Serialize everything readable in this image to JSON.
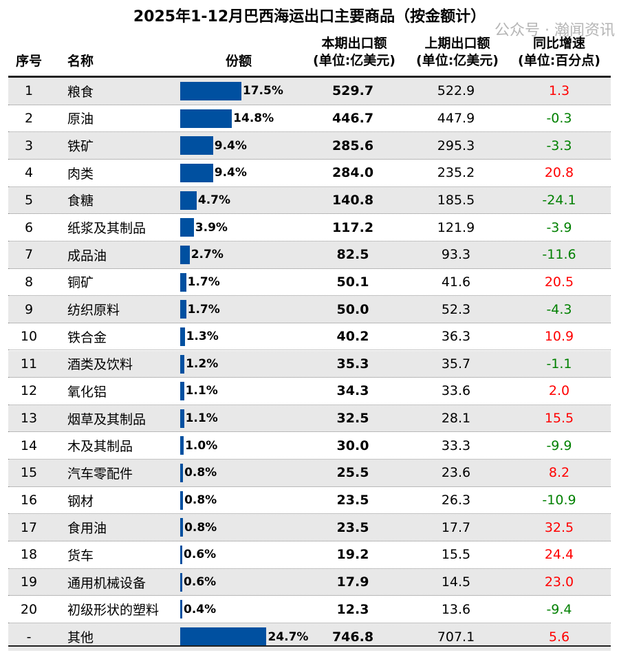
{
  "title": "2025年1-12月巴西海运出口主要商品（按金额计）",
  "headers": {
    "idx": "序号",
    "name": "名称",
    "share": "份额",
    "cur": [
      "本期出口额",
      "(单位:亿美元)"
    ],
    "prev": [
      "上期出口额",
      "(单位:亿美元)"
    ],
    "yoy": [
      "同比增速",
      "(单位:百分点)"
    ]
  },
  "colors": {
    "bar": "#0050a0",
    "positive": "#ff0000",
    "negative": "#008000",
    "stripe": "#e8e8e8"
  },
  "watermark": "公众号 · 瀚闻资讯",
  "chart_data": {
    "type": "table",
    "title": "2025年1-12月巴西海运出口主要商品（按金额计）",
    "rows": [
      {
        "idx": "1",
        "name": "粮食",
        "share": 17.5,
        "share_label": "17.5%",
        "cur": "529.7",
        "prev": "522.9",
        "yoy": "1.3"
      },
      {
        "idx": "2",
        "name": "原油",
        "share": 14.8,
        "share_label": "14.8%",
        "cur": "446.7",
        "prev": "447.9",
        "yoy": "-0.3"
      },
      {
        "idx": "3",
        "name": "铁矿",
        "share": 9.4,
        "share_label": "9.4%",
        "cur": "285.6",
        "prev": "295.3",
        "yoy": "-3.3"
      },
      {
        "idx": "4",
        "name": "肉类",
        "share": 9.4,
        "share_label": "9.4%",
        "cur": "284.0",
        "prev": "235.2",
        "yoy": "20.8"
      },
      {
        "idx": "5",
        "name": "食糖",
        "share": 4.7,
        "share_label": "4.7%",
        "cur": "140.8",
        "prev": "185.5",
        "yoy": "-24.1"
      },
      {
        "idx": "6",
        "name": "纸浆及其制品",
        "share": 3.9,
        "share_label": "3.9%",
        "cur": "117.2",
        "prev": "121.9",
        "yoy": "-3.9"
      },
      {
        "idx": "7",
        "name": "成品油",
        "share": 2.7,
        "share_label": "2.7%",
        "cur": "82.5",
        "prev": "93.3",
        "yoy": "-11.6"
      },
      {
        "idx": "8",
        "name": "铜矿",
        "share": 1.7,
        "share_label": "1.7%",
        "cur": "50.1",
        "prev": "41.6",
        "yoy": "20.5"
      },
      {
        "idx": "9",
        "name": "纺织原料",
        "share": 1.7,
        "share_label": "1.7%",
        "cur": "50.0",
        "prev": "52.3",
        "yoy": "-4.3"
      },
      {
        "idx": "10",
        "name": "铁合金",
        "share": 1.3,
        "share_label": "1.3%",
        "cur": "40.2",
        "prev": "36.3",
        "yoy": "10.9"
      },
      {
        "idx": "11",
        "name": "酒类及饮料",
        "share": 1.2,
        "share_label": "1.2%",
        "cur": "35.3",
        "prev": "35.7",
        "yoy": "-1.1"
      },
      {
        "idx": "12",
        "name": "氧化铝",
        "share": 1.1,
        "share_label": "1.1%",
        "cur": "34.3",
        "prev": "33.6",
        "yoy": "2.0"
      },
      {
        "idx": "13",
        "name": "烟草及其制品",
        "share": 1.1,
        "share_label": "1.1%",
        "cur": "32.5",
        "prev": "28.1",
        "yoy": "15.5"
      },
      {
        "idx": "14",
        "name": "木及其制品",
        "share": 1.0,
        "share_label": "1.0%",
        "cur": "30.0",
        "prev": "33.3",
        "yoy": "-9.9"
      },
      {
        "idx": "15",
        "name": "汽车零配件",
        "share": 0.8,
        "share_label": "0.8%",
        "cur": "25.5",
        "prev": "23.6",
        "yoy": "8.2"
      },
      {
        "idx": "16",
        "name": "钢材",
        "share": 0.8,
        "share_label": "0.8%",
        "cur": "23.5",
        "prev": "26.3",
        "yoy": "-10.9"
      },
      {
        "idx": "17",
        "name": "食用油",
        "share": 0.8,
        "share_label": "0.8%",
        "cur": "23.5",
        "prev": "17.7",
        "yoy": "32.5"
      },
      {
        "idx": "18",
        "name": "货车",
        "share": 0.6,
        "share_label": "0.6%",
        "cur": "19.2",
        "prev": "15.5",
        "yoy": "24.4"
      },
      {
        "idx": "19",
        "name": "通用机械设备",
        "share": 0.6,
        "share_label": "0.6%",
        "cur": "17.9",
        "prev": "14.5",
        "yoy": "23.0"
      },
      {
        "idx": "20",
        "name": "初级形状的塑料",
        "share": 0.4,
        "share_label": "0.4%",
        "cur": "12.3",
        "prev": "13.6",
        "yoy": "-9.4"
      },
      {
        "idx": "-",
        "name": "其他",
        "share": 24.7,
        "share_label": "24.7%",
        "cur": "746.8",
        "prev": "707.1",
        "yoy": "5.6"
      }
    ]
  }
}
